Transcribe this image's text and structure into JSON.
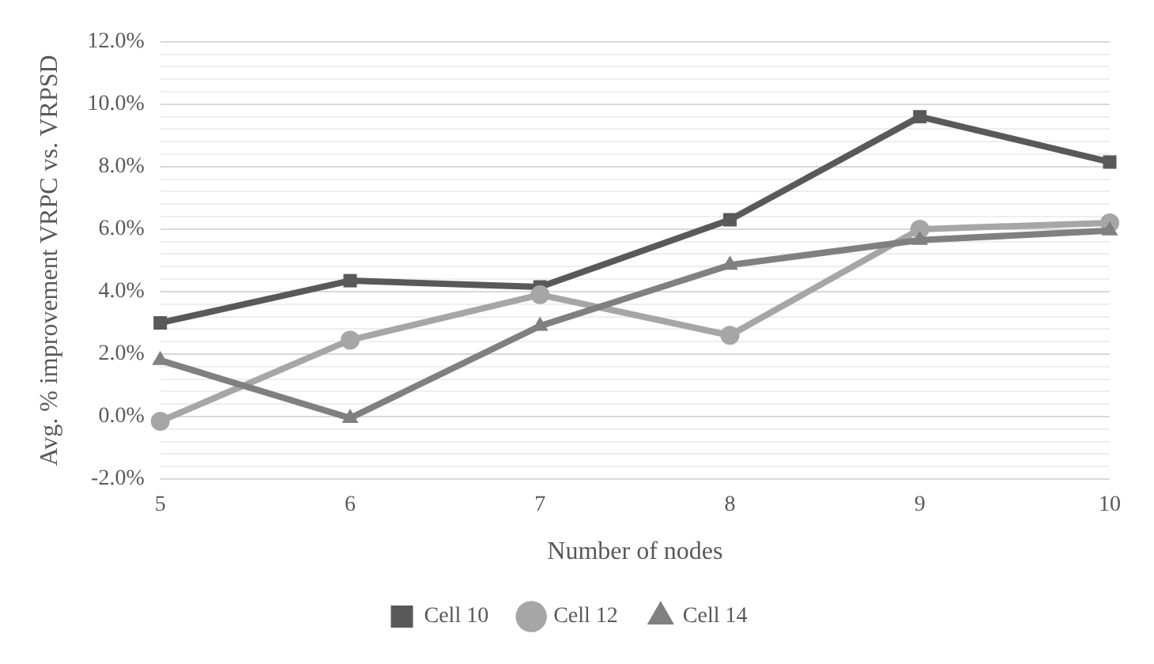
{
  "chart_data": {
    "type": "line",
    "xlabel": "Number of nodes",
    "ylabel": "Avg. % improvement VRPC vs. VRPSD",
    "categories": [
      "5",
      "6",
      "7",
      "8",
      "9",
      "10"
    ],
    "series": [
      {
        "name": "Cell 10",
        "color": "#595959",
        "marker": "square",
        "values": [
          3.0,
          4.35,
          4.15,
          6.3,
          9.6,
          8.15
        ]
      },
      {
        "name": "Cell 12",
        "color": "#a6a6a6",
        "marker": "circle",
        "values": [
          -0.15,
          2.45,
          3.9,
          2.6,
          6.0,
          6.2
        ]
      },
      {
        "name": "Cell 14",
        "color": "#808080",
        "marker": "triangle",
        "values": [
          1.8,
          -0.05,
          2.9,
          4.85,
          5.65,
          5.95
        ]
      }
    ],
    "ylim": [
      -2,
      12
    ],
    "yticks": [
      {
        "value": -2,
        "label": "-2.0%"
      },
      {
        "value": -1.6,
        "label": null
      },
      {
        "value": -1.2,
        "label": null
      },
      {
        "value": -0.8,
        "label": null
      },
      {
        "value": -0.4,
        "label": null
      },
      {
        "value": 0,
        "label": "0.0%"
      },
      {
        "value": 0.4,
        "label": null
      },
      {
        "value": 0.8,
        "label": null
      },
      {
        "value": 1.2,
        "label": null
      },
      {
        "value": 1.6,
        "label": null
      },
      {
        "value": 2,
        "label": "2.0%"
      },
      {
        "value": 2.4,
        "label": null
      },
      {
        "value": 2.8,
        "label": null
      },
      {
        "value": 3.2,
        "label": null
      },
      {
        "value": 3.6,
        "label": null
      },
      {
        "value": 4,
        "label": "4.0%"
      },
      {
        "value": 4.4,
        "label": null
      },
      {
        "value": 4.8,
        "label": null
      },
      {
        "value": 5.2,
        "label": null
      },
      {
        "value": 5.6,
        "label": null
      },
      {
        "value": 6,
        "label": "6.0%"
      },
      {
        "value": 6.4,
        "label": null
      },
      {
        "value": 6.8,
        "label": null
      },
      {
        "value": 7.2,
        "label": null
      },
      {
        "value": 7.6,
        "label": null
      },
      {
        "value": 8,
        "label": "8.0%"
      },
      {
        "value": 8.4,
        "label": null
      },
      {
        "value": 8.8,
        "label": null
      },
      {
        "value": 9.2,
        "label": null
      },
      {
        "value": 9.6,
        "label": null
      },
      {
        "value": 10,
        "label": "10.0%"
      },
      {
        "value": 10.4,
        "label": null
      },
      {
        "value": 10.8,
        "label": null
      },
      {
        "value": 11.2,
        "label": null
      },
      {
        "value": 11.6,
        "label": null
      },
      {
        "value": 12,
        "label": "12.0%"
      }
    ],
    "grid": "y",
    "legend": "bottom",
    "line_style": "solid"
  }
}
